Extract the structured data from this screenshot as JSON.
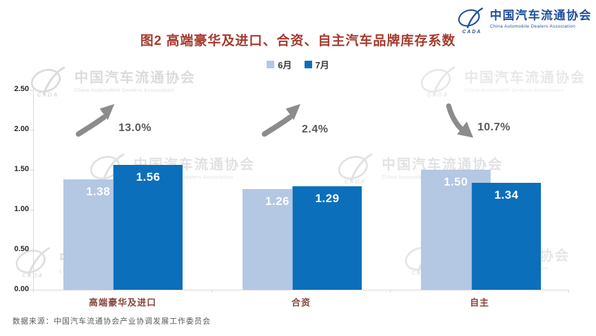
{
  "logo": {
    "org_zh": "中国汽车流通协会",
    "org_en": "China Automobile Dealers Association",
    "abbr": "CADA",
    "color": "#1F4E9C"
  },
  "header": {
    "title": "图2  高端豪华及进口、合资、自主汽车品牌库存系数",
    "title_color": "#A53A2E"
  },
  "legend": {
    "items": [
      {
        "label": "6月",
        "color": "#B4C7E3"
      },
      {
        "label": "7月",
        "color": "#0B6FBC"
      }
    ]
  },
  "chart_data": {
    "type": "bar",
    "title": "图2  高端豪华及进口、合资、自主汽车品牌库存系数",
    "categories": [
      "高端豪华及进口",
      "合资",
      "自主"
    ],
    "series": [
      {
        "name": "6月",
        "color": "#B4C7E3",
        "values": [
          1.38,
          1.26,
          1.5
        ],
        "value_labels": [
          "1.38",
          "1.26",
          "1.50"
        ]
      },
      {
        "name": "7月",
        "color": "#0B6FBC",
        "values": [
          1.56,
          1.29,
          1.34
        ],
        "value_labels": [
          "1.56",
          "1.29",
          "1.34"
        ]
      }
    ],
    "annotations": [
      {
        "category": "高端豪华及进口",
        "text": "13.0%",
        "direction": "up"
      },
      {
        "category": "合资",
        "text": "2.4%",
        "direction": "up"
      },
      {
        "category": "自主",
        "text": "10.7%",
        "direction": "down"
      }
    ],
    "xlabel": "",
    "ylabel": "",
    "ylim": [
      0,
      2.5
    ],
    "yticks": [
      "0.00",
      "0.50",
      "1.00",
      "1.50",
      "2.00",
      "2.50"
    ],
    "grid": false,
    "legend_position": "top",
    "arrow_color": "#8C8C8C"
  },
  "watermark": {
    "zh": "中国汽车流通协会",
    "en": "China Automobile Dealers Association",
    "abbr": "CADA"
  },
  "footer": {
    "source": "数据来源：中国汽车流通协会产业协调发展工作委员会"
  }
}
